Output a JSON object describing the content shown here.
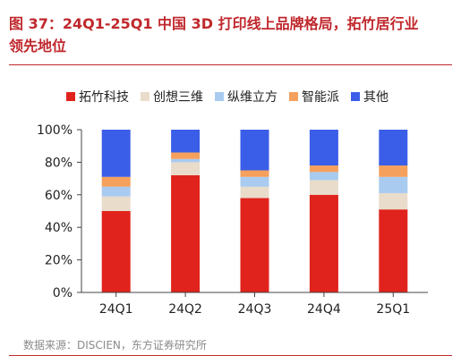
{
  "title_line1": "图 37：24Q1-25Q1 中国 3D 打印线上品牌格局，拓竹居行业",
  "title_line2": "领先地位",
  "source": "数据来源：DISCIEN，东方证券研究所",
  "chart_data": {
    "type": "bar",
    "stacked": true,
    "percent": true,
    "categories": [
      "24Q1",
      "24Q2",
      "24Q3",
      "24Q4",
      "25Q1"
    ],
    "series": [
      {
        "name": "拓竹科技",
        "color": "#e0231c",
        "values": [
          50,
          72,
          58,
          60,
          51
        ]
      },
      {
        "name": "创想三维",
        "color": "#e9dccb",
        "values": [
          9,
          8,
          7,
          9,
          10
        ]
      },
      {
        "name": "纵维立方",
        "color": "#a9cbf0",
        "values": [
          6,
          2,
          6,
          5,
          10
        ]
      },
      {
        "name": "智能派",
        "color": "#f5a05c",
        "values": [
          6,
          4,
          4,
          4,
          7
        ]
      },
      {
        "name": "其他",
        "color": "#3b5ee8",
        "values": [
          29,
          14,
          25,
          22,
          22
        ]
      }
    ],
    "yticks": [
      "0%",
      "20%",
      "40%",
      "60%",
      "80%",
      "100%"
    ],
    "ylim": [
      0,
      100
    ],
    "legend_position": "top",
    "grid": false
  }
}
